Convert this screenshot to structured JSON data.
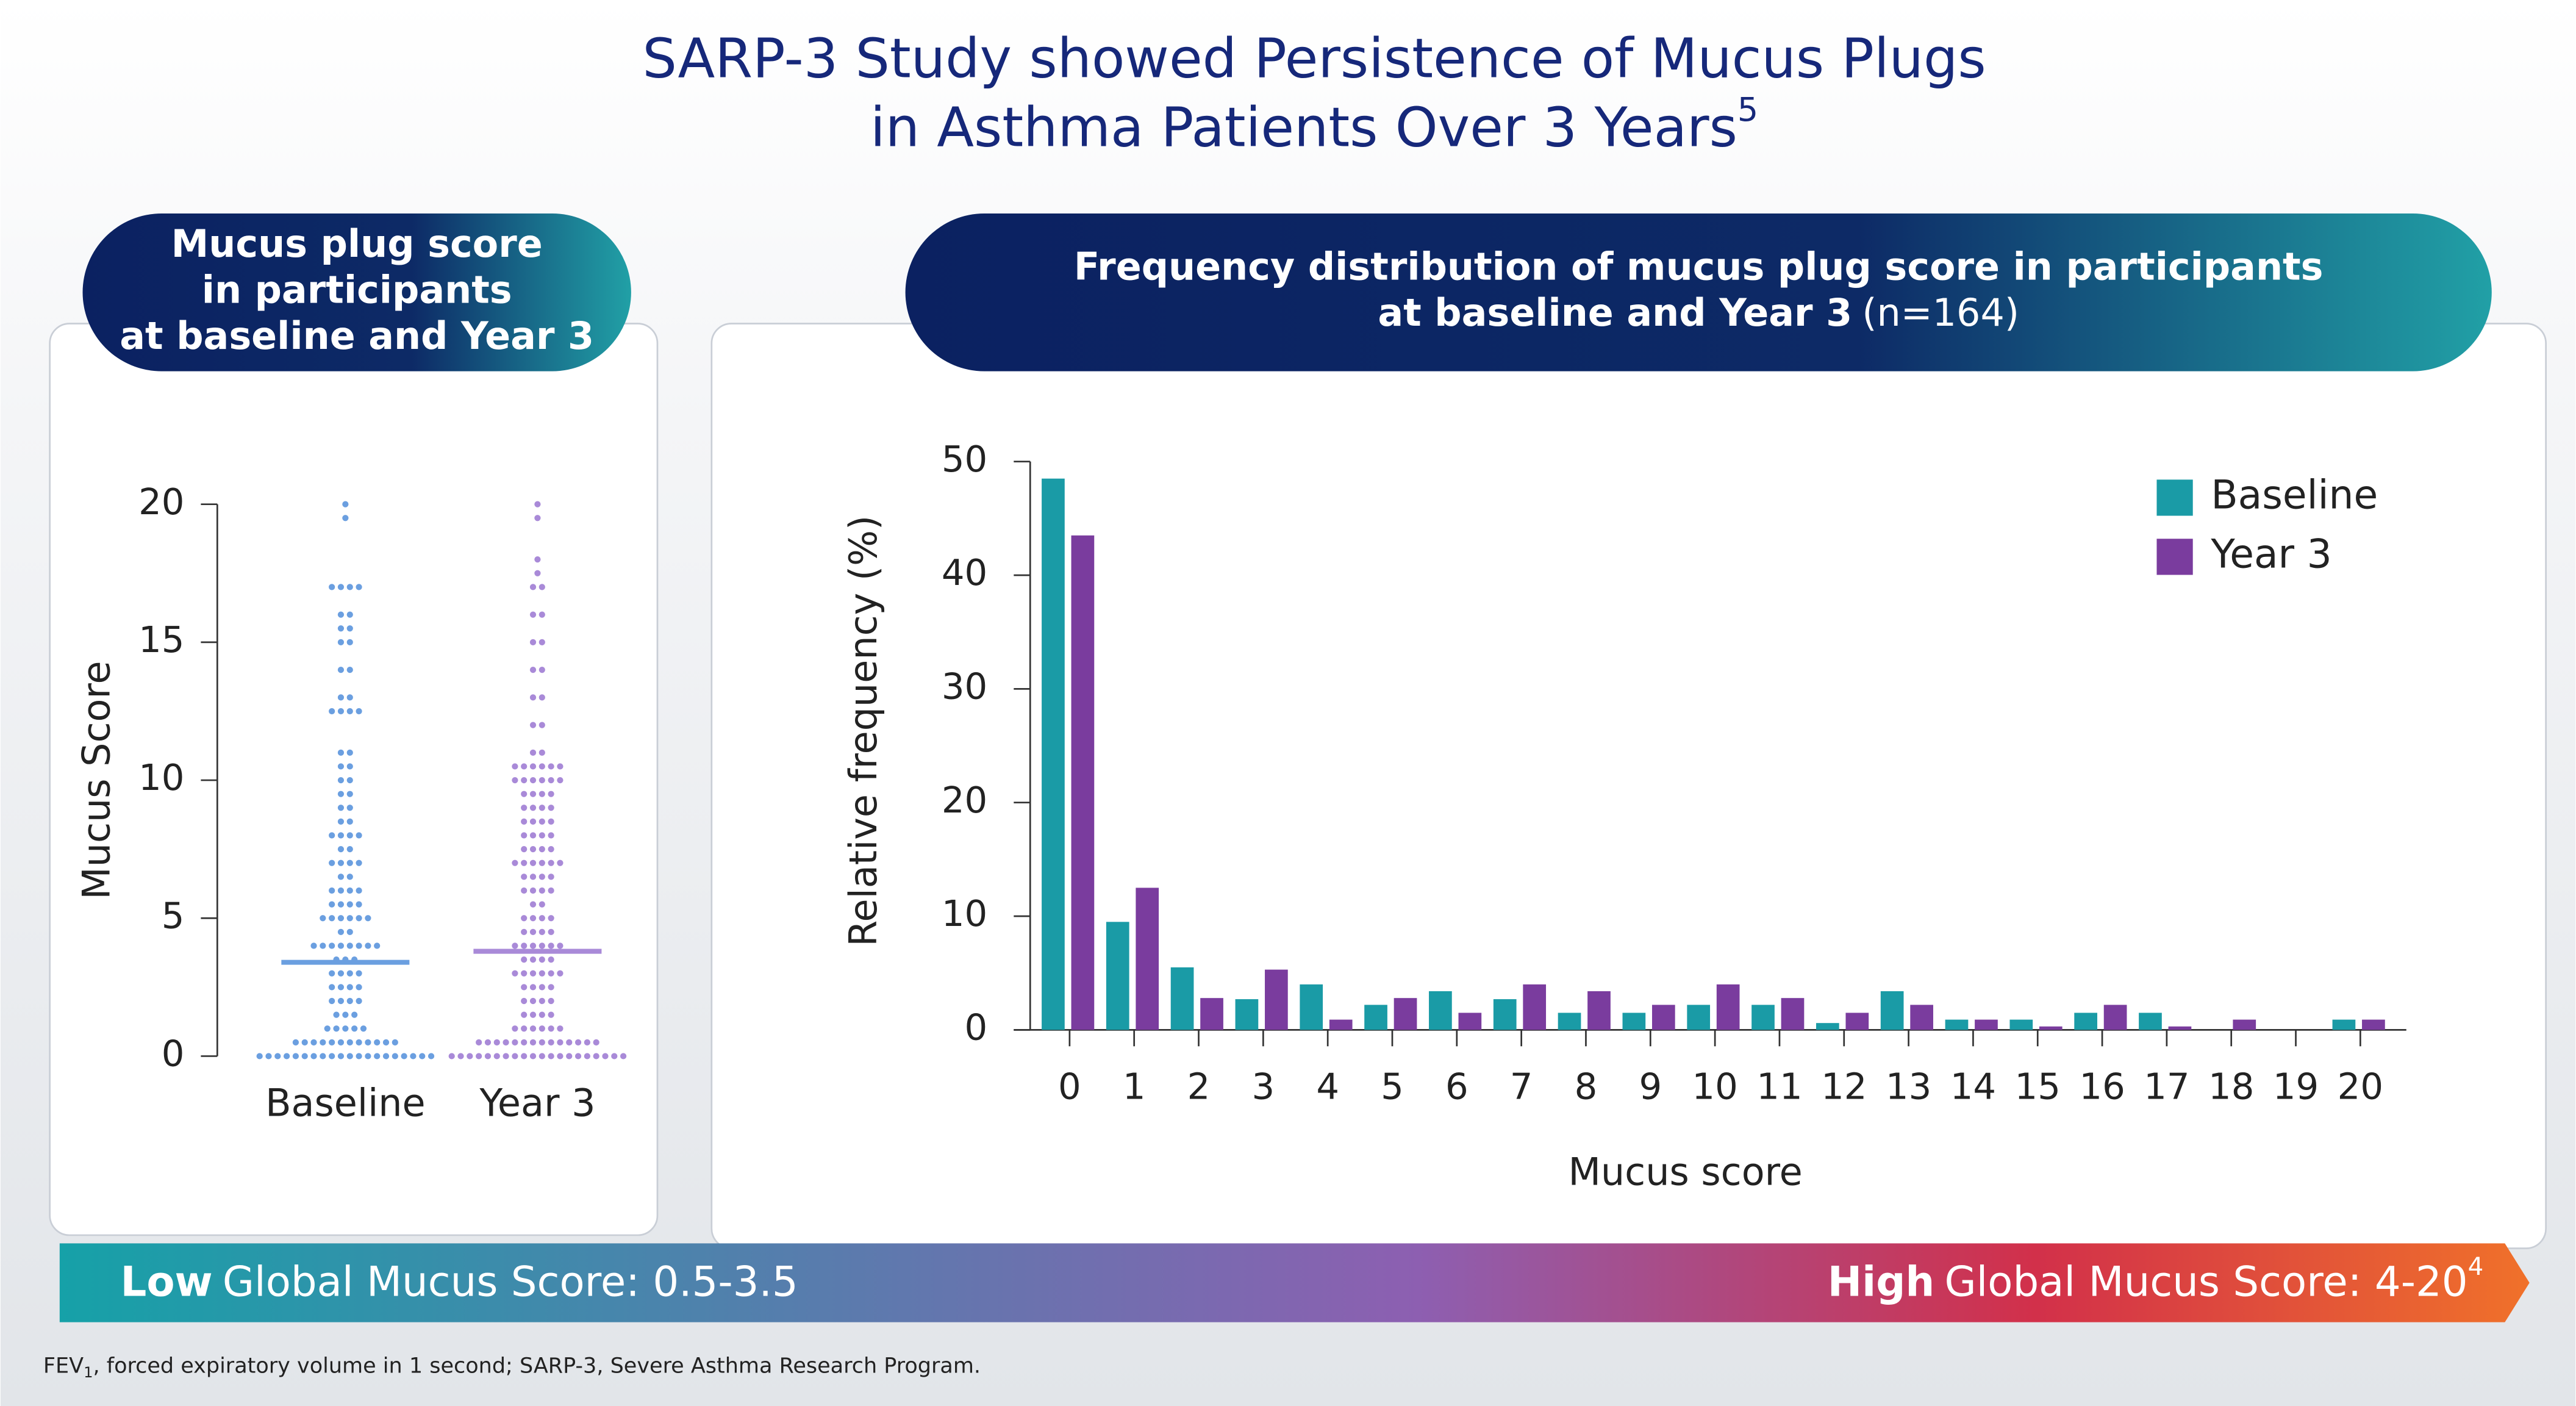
{
  "header": {
    "title_line1": "SARP-3 Study showed Persistence of Mucus Plugs",
    "title_line2": "in Asthma Patients Over 3 Years",
    "title_sup": "5"
  },
  "banner": {
    "low_bold": "Low",
    "low_text": "Global Mucus Score: 0.5-3.5",
    "high_bold": "High",
    "high_text": "Global Mucus Score: 4-20",
    "high_sup": "4"
  },
  "footnote": {
    "abbr": "FEV",
    "sub": "1",
    "text": ", forced expiratory volume in 1 second; SARP-3, Severe Asthma Research Program."
  },
  "chart_data": [
    {
      "type": "strip",
      "header": [
        "Mucus plug score",
        "in participants",
        "at baseline and Year 3"
      ],
      "y_label": "Mucus Score",
      "categories": [
        "Baseline",
        "Year 3"
      ],
      "ylim": [
        0,
        20
      ],
      "yticks": [
        0,
        5,
        10,
        15,
        20
      ],
      "series": [
        {
          "color": "#6b9fe0",
          "median": 3.4,
          "values": [
            0,
            0,
            0,
            0,
            0,
            0,
            0,
            0,
            0,
            0,
            0,
            0,
            0,
            0,
            0,
            0,
            0,
            0,
            0,
            0,
            0.5,
            0.5,
            0.5,
            0.5,
            0.5,
            0.5,
            0.5,
            0.5,
            0.5,
            0.5,
            0.5,
            0.5,
            1,
            1,
            1,
            1,
            1,
            1.5,
            1.5,
            1.5,
            2,
            2,
            2,
            2,
            2.5,
            2.5,
            2.5,
            2.5,
            3,
            3,
            3,
            3,
            3.5,
            3.5,
            3.5,
            4,
            4,
            4,
            4,
            4,
            4,
            4,
            4,
            4.5,
            4.5,
            5,
            5,
            5,
            5,
            5,
            5,
            5.5,
            5.5,
            5.5,
            5.5,
            6,
            6,
            6,
            6,
            6.5,
            6.5,
            7,
            7,
            7,
            7,
            7.5,
            7.5,
            8,
            8,
            8,
            8,
            8.5,
            8.5,
            9,
            9,
            9.5,
            9.5,
            10,
            10,
            10.5,
            10.5,
            11,
            11,
            12.5,
            12.5,
            12.5,
            12.5,
            13,
            13,
            14,
            14,
            15,
            15,
            15.5,
            15.5,
            16,
            16,
            17,
            17,
            17,
            17,
            19.5,
            20
          ]
        },
        {
          "color": "#a98ad8",
          "median": 3.8,
          "values": [
            0,
            0,
            0,
            0,
            0,
            0,
            0,
            0,
            0,
            0,
            0,
            0,
            0,
            0,
            0,
            0,
            0,
            0,
            0,
            0,
            0.5,
            0.5,
            0.5,
            0.5,
            0.5,
            0.5,
            0.5,
            0.5,
            0.5,
            0.5,
            0.5,
            0.5,
            0.5,
            0.5,
            1,
            1,
            1,
            1,
            1,
            1,
            1.5,
            1.5,
            1.5,
            1.5,
            2,
            2,
            2,
            2,
            2.5,
            2.5,
            2.5,
            2.5,
            3,
            3,
            3,
            3,
            3,
            3,
            3.5,
            3.5,
            3.5,
            3.5,
            4,
            4,
            4,
            4,
            4,
            4,
            4.5,
            4.5,
            4.5,
            4.5,
            5,
            5,
            5,
            5,
            5.5,
            5.5,
            6,
            6,
            6,
            6,
            6.5,
            6.5,
            6.5,
            6.5,
            7,
            7,
            7,
            7,
            7,
            7,
            7.5,
            7.5,
            7.5,
            7.5,
            8,
            8,
            8,
            8,
            8.5,
            8.5,
            8.5,
            8.5,
            9,
            9,
            9,
            9,
            9.5,
            9.5,
            9.5,
            9.5,
            10,
            10,
            10,
            10,
            10,
            10,
            10.5,
            10.5,
            10.5,
            10.5,
            10.5,
            10.5,
            11,
            11,
            12,
            12,
            13,
            13,
            14,
            14,
            15,
            15,
            16,
            16,
            17,
            17,
            17.5,
            18,
            19.5,
            20
          ]
        }
      ]
    },
    {
      "type": "bar",
      "header": [
        "Frequency distribution of mucus plug score in participants",
        "at baseline and Year 3",
        "(n=164)"
      ],
      "x_label": "Mucus score",
      "y_label": "Relative frequency (%)",
      "categories": [
        0,
        1,
        2,
        3,
        4,
        5,
        6,
        7,
        8,
        9,
        10,
        11,
        12,
        13,
        14,
        15,
        16,
        17,
        18,
        19,
        20
      ],
      "ylim": [
        0,
        50
      ],
      "yticks": [
        0,
        10,
        20,
        30,
        40,
        50
      ],
      "legend": "upper right",
      "series": [
        {
          "name": "Baseline",
          "color": "#1a9ba6",
          "values": [
            48.5,
            9.5,
            5.5,
            2.7,
            4,
            2.2,
            3.4,
            2.7,
            1.5,
            1.5,
            2.2,
            2.2,
            0.6,
            3.4,
            0.9,
            0.9,
            1.5,
            1.5,
            0,
            0,
            0.9
          ]
        },
        {
          "name": "Year 3",
          "color": "#7a3c9e",
          "values": [
            43.5,
            12.5,
            2.8,
            5.3,
            0.9,
            2.8,
            1.5,
            4,
            3.4,
            2.2,
            4,
            2.8,
            1.5,
            2.2,
            0.9,
            0.3,
            2.2,
            0.3,
            0.9,
            0,
            0.9
          ]
        }
      ]
    }
  ]
}
